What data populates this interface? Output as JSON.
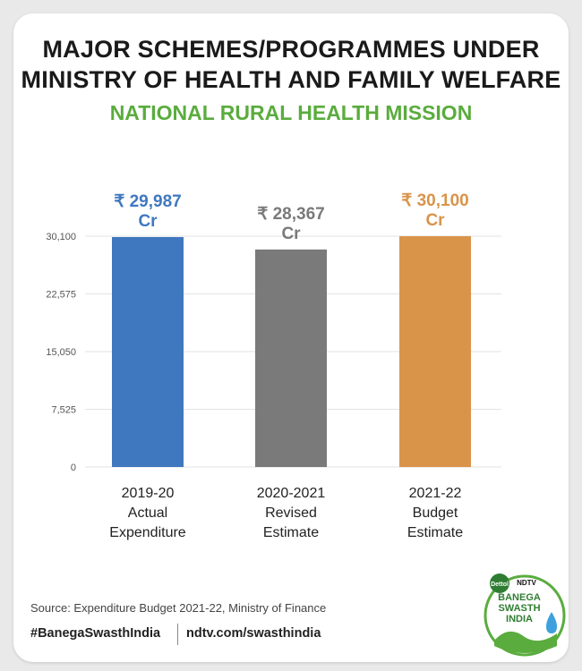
{
  "header": {
    "title_line1": "MAJOR SCHEMES/PROGRAMMES UNDER",
    "title_line2": "MINISTRY OF HEALTH AND FAMILY WELFARE",
    "subtitle": "NATIONAL RURAL HEALTH MISSION"
  },
  "chart_data": {
    "type": "bar",
    "categories": [
      [
        "2019-20",
        "Actual",
        "Expenditure"
      ],
      [
        "2020-2021",
        "Revised",
        "Estimate"
      ],
      [
        "2021-22",
        "Budget",
        "Estimate"
      ]
    ],
    "values": [
      29987,
      28367,
      30100
    ],
    "value_labels": [
      [
        "₹ 29,987",
        "Cr"
      ],
      [
        "₹ 28,367",
        "Cr"
      ],
      [
        "₹ 30,100",
        "Cr"
      ]
    ],
    "colors": [
      "#3f78bf",
      "#7a7a7a",
      "#d9944a"
    ],
    "ylim": [
      0,
      30100
    ],
    "yticks": [
      0,
      7525,
      15050,
      22575,
      30100
    ],
    "ytick_labels": [
      "0",
      "7,525",
      "15,050",
      "22,575",
      "30,100"
    ],
    "grid": true,
    "title": "",
    "xlabel": "",
    "ylabel": ""
  },
  "footer": {
    "source": "Source: Expenditure Budget 2021-22, Ministry of Finance",
    "hashtag": "#BanegaSwasthIndia",
    "url": "ndtv.com/swasthindia"
  },
  "logo": {
    "brand1": "Dettol",
    "brand2": "NDTV",
    "line1": "BANEGA",
    "line2": "SWASTH",
    "line3": "INDIA"
  }
}
